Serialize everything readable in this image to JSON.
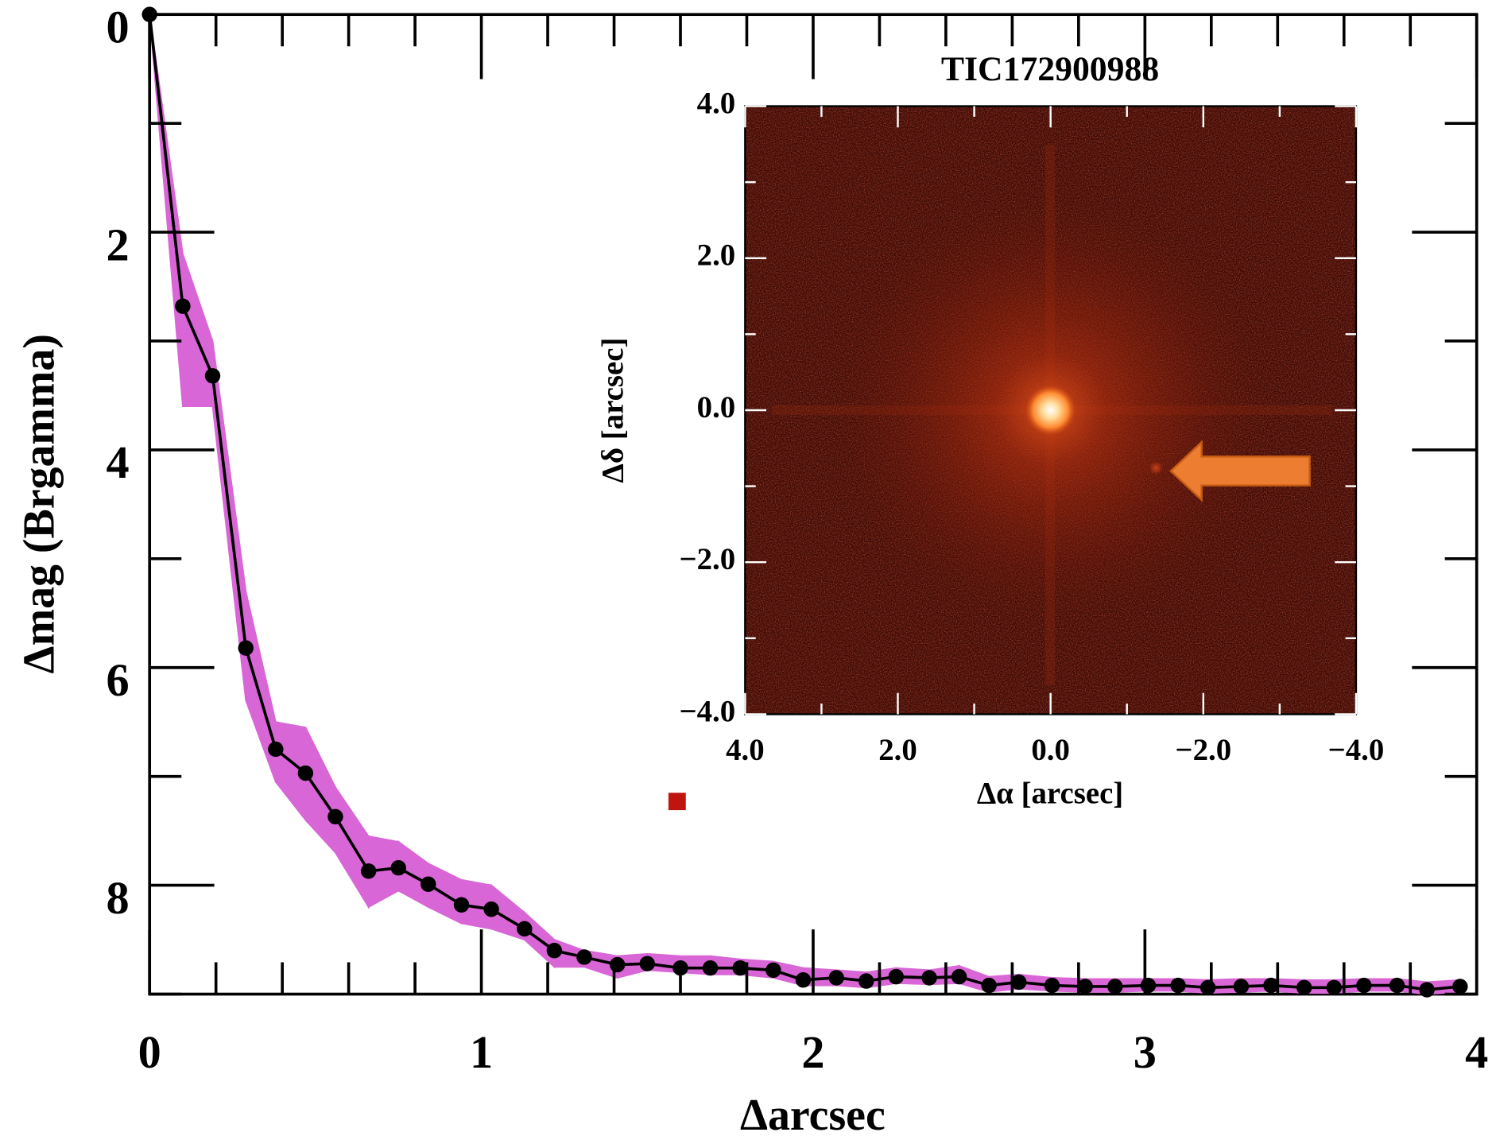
{
  "chart_data": [
    {
      "type": "line",
      "ylabel": "Δmag (Brgamma)",
      "xlabel": "Δarcsec",
      "xlim": [
        0,
        4
      ],
      "ylim": [
        0,
        9
      ],
      "y_inverted": true,
      "xticks": [
        0,
        1,
        2,
        3,
        4
      ],
      "xticks_minor": [
        0.2,
        0.4,
        0.6,
        0.8,
        1.2,
        1.4,
        1.6,
        1.8,
        2.2,
        2.4,
        2.6,
        2.8,
        3.2,
        3.4,
        3.6,
        3.8
      ],
      "yticks": [
        0,
        2,
        4,
        6,
        8
      ],
      "yticks_minor": [
        1,
        3,
        5,
        7,
        9
      ],
      "series": [
        {
          "color": "#000000",
          "band_color": "#d966d6",
          "x": [
            0,
            0.1,
            0.19,
            0.29,
            0.38,
            0.47,
            0.56,
            0.66,
            0.75,
            0.84,
            0.94,
            1.03,
            1.13,
            1.22,
            1.31,
            1.41,
            1.5,
            1.6,
            1.69,
            1.78,
            1.88,
            1.97,
            2.07,
            2.16,
            2.25,
            2.35,
            2.44,
            2.53,
            2.62,
            2.72,
            2.82,
            2.91,
            3.01,
            3.1,
            3.19,
            3.29,
            3.38,
            3.48,
            3.57,
            3.66,
            3.76,
            3.85,
            3.95
          ],
          "values": [
            0,
            2.68,
            3.32,
            5.82,
            6.75,
            6.97,
            7.37,
            7.87,
            7.84,
            7.99,
            8.18,
            8.22,
            8.4,
            8.6,
            8.66,
            8.73,
            8.72,
            8.76,
            8.76,
            8.76,
            8.78,
            8.87,
            8.85,
            8.88,
            8.84,
            8.85,
            8.84,
            8.92,
            8.89,
            8.92,
            8.93,
            8.93,
            8.92,
            8.92,
            8.94,
            8.93,
            8.92,
            8.94,
            8.94,
            8.92,
            8.92,
            8.96,
            8.93
          ],
          "band_low": [
            0,
            2.2,
            3.0,
            5.3,
            6.5,
            6.55,
            7.1,
            7.55,
            7.6,
            7.8,
            7.95,
            8.0,
            8.25,
            8.5,
            8.6,
            8.65,
            8.63,
            8.65,
            8.65,
            8.68,
            8.7,
            8.76,
            8.78,
            8.8,
            8.76,
            8.78,
            8.74,
            8.84,
            8.82,
            8.85,
            8.86,
            8.86,
            8.86,
            8.86,
            8.87,
            8.86,
            8.86,
            8.87,
            8.87,
            8.86,
            8.86,
            8.89,
            8.87
          ],
          "band_high": [
            0,
            3.6,
            3.6,
            6.3,
            7.05,
            7.4,
            7.7,
            8.2,
            8.05,
            8.2,
            8.35,
            8.4,
            8.5,
            8.75,
            8.75,
            8.85,
            8.78,
            8.8,
            8.82,
            8.82,
            8.85,
            8.92,
            8.92,
            8.94,
            8.9,
            8.91,
            8.9,
            8.98,
            8.95,
            8.97,
            8.98,
            8.98,
            8.97,
            8.97,
            8.99,
            8.98,
            8.97,
            8.99,
            8.99,
            8.97,
            8.97,
            9.0,
            8.98
          ]
        }
      ],
      "points": {
        "x": [
          1.59
        ],
        "values": [
          7.23
        ],
        "color": "#c0150f"
      }
    },
    {
      "type": "image",
      "title": "TIC172900988",
      "xlabel": "Δα [arcsec]",
      "ylabel": "Δδ [arcsec]",
      "xlim": [
        4,
        -4
      ],
      "ylim": [
        -4,
        4
      ],
      "xticks": [
        {
          "value": 4,
          "label": "4.0"
        },
        {
          "value": 2,
          "label": "2.0"
        },
        {
          "value": 0,
          "label": "0.0"
        },
        {
          "value": -2,
          "label": "−2.0"
        },
        {
          "value": -4,
          "label": "−4.0"
        }
      ],
      "yticks": [
        {
          "value": 4,
          "label": "4.0"
        },
        {
          "value": 2,
          "label": "2.0"
        },
        {
          "value": 0,
          "label": "0.0"
        },
        {
          "value": -2,
          "label": "−2.0"
        },
        {
          "value": -4,
          "label": "−4.0"
        }
      ],
      "xticks_minor": [
        3,
        1,
        -1,
        -3
      ],
      "yticks_minor": [
        3,
        1,
        -1,
        -3
      ],
      "sources": {
        "x": [
          0,
          -1.38
        ],
        "y": [
          0,
          -0.76
        ]
      }
    }
  ]
}
